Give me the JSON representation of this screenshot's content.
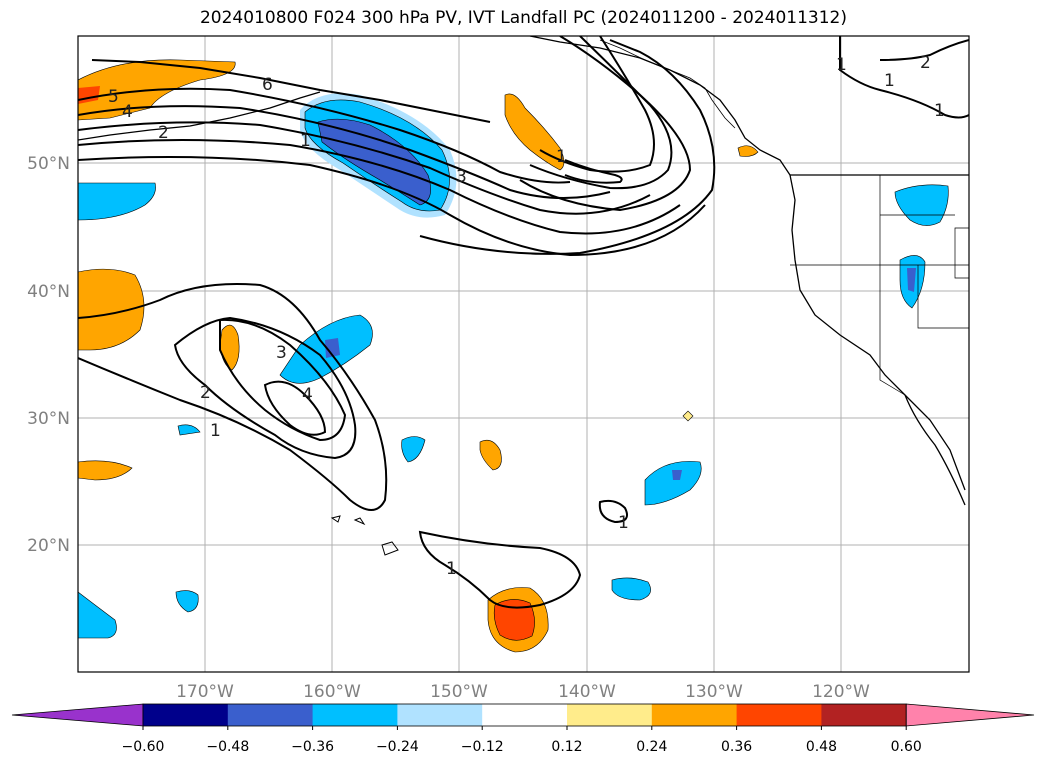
{
  "title": "2024010800 F024 300 hPa PV, IVT Landfall PC (2024011200 - 2024011312)",
  "map": {
    "lat_labels": [
      "50°N",
      "40°N",
      "30°N",
      "20°N"
    ],
    "lon_labels": [
      "170°W",
      "160°W",
      "150°W",
      "140°W",
      "130°W",
      "120°W"
    ],
    "contour_labels": [
      "5",
      "4",
      "6",
      "2",
      "1",
      "3",
      "1",
      "2",
      "3",
      "4",
      "1",
      "1",
      "1",
      "1",
      "2",
      "1",
      "1"
    ]
  },
  "colorbar": {
    "ticks": [
      "−0.60",
      "−0.48",
      "−0.36",
      "−0.24",
      "−0.12",
      "0.12",
      "0.24",
      "0.36",
      "0.48",
      "0.60"
    ],
    "colors": [
      "#9932cc",
      "#00008b",
      "#3a5fcd",
      "#00bfff",
      "#b0e2ff",
      "#ffffff",
      "#ffec8b",
      "#ffa500",
      "#ff4500",
      "#b22222",
      "#ff82ab"
    ]
  }
}
